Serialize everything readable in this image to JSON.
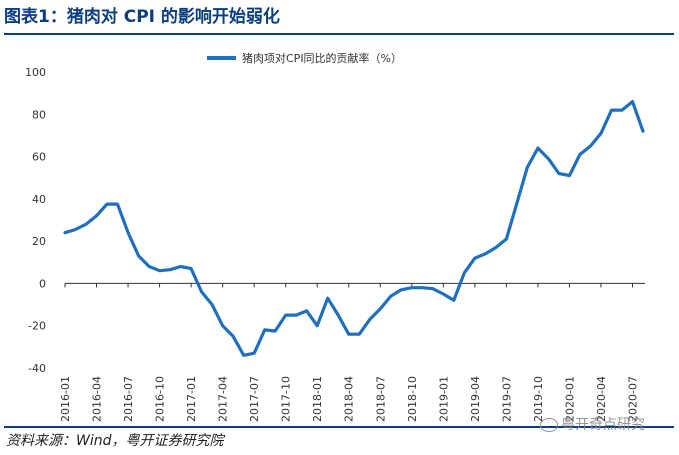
{
  "header": {
    "title": "图表1：猪肉对 CPI 的影响开始弱化"
  },
  "footer": {
    "source": "资料来源：Wind，粤开证券研究院",
    "watermark": "粤开奇点研究"
  },
  "colors": {
    "accent": "#0a3d82",
    "series": "#1f6fbf",
    "axis": "#333333",
    "tick_text": "#333333"
  },
  "chart_data": {
    "type": "line",
    "title": "",
    "xlabel": "",
    "ylabel": "",
    "ylim": [
      -40,
      100
    ],
    "yticks": [
      -40,
      -20,
      0,
      20,
      40,
      60,
      80,
      100
    ],
    "grid": false,
    "legend_position": "top-center",
    "x_tick_labels": [
      "2016-01",
      "2016-04",
      "2016-07",
      "2016-10",
      "2017-01",
      "2017-04",
      "2017-07",
      "2017-10",
      "2018-01",
      "2018-04",
      "2018-07",
      "2018-10",
      "2019-01",
      "2019-04",
      "2019-07",
      "2019-10",
      "2020-01",
      "2020-04",
      "2020-07"
    ],
    "series": [
      {
        "name": "猪肉项对CPI同比的贡献率（%）",
        "x": [
          "2016-01",
          "2016-02",
          "2016-03",
          "2016-04",
          "2016-05",
          "2016-06",
          "2016-07",
          "2016-08",
          "2016-09",
          "2016-10",
          "2016-11",
          "2016-12",
          "2017-01",
          "2017-02",
          "2017-03",
          "2017-04",
          "2017-05",
          "2017-06",
          "2017-07",
          "2017-08",
          "2017-09",
          "2017-10",
          "2017-11",
          "2017-12",
          "2018-01",
          "2018-02",
          "2018-03",
          "2018-04",
          "2018-05",
          "2018-06",
          "2018-07",
          "2018-08",
          "2018-09",
          "2018-10",
          "2018-11",
          "2018-12",
          "2019-01",
          "2019-02",
          "2019-03",
          "2019-04",
          "2019-05",
          "2019-06",
          "2019-07",
          "2019-08",
          "2019-09",
          "2019-10",
          "2019-11",
          "2019-12",
          "2020-01",
          "2020-02",
          "2020-03",
          "2020-04",
          "2020-05",
          "2020-06",
          "2020-07",
          "2020-08"
        ],
        "values": [
          24,
          25.5,
          28,
          32,
          37.5,
          37.5,
          24,
          13,
          8,
          6,
          6.5,
          8,
          7,
          -4,
          -10,
          -20,
          -25,
          -34,
          -33,
          -22,
          -22.5,
          -15,
          -15,
          -13,
          -20,
          -7,
          -15,
          -24,
          -24,
          -17,
          -12,
          -6,
          -3,
          -2,
          -2,
          -2.5,
          -5,
          -8,
          5,
          12,
          14,
          17,
          21,
          38,
          55,
          64,
          59,
          52,
          51,
          61,
          65,
          71,
          82,
          82,
          86,
          72
        ]
      }
    ]
  }
}
